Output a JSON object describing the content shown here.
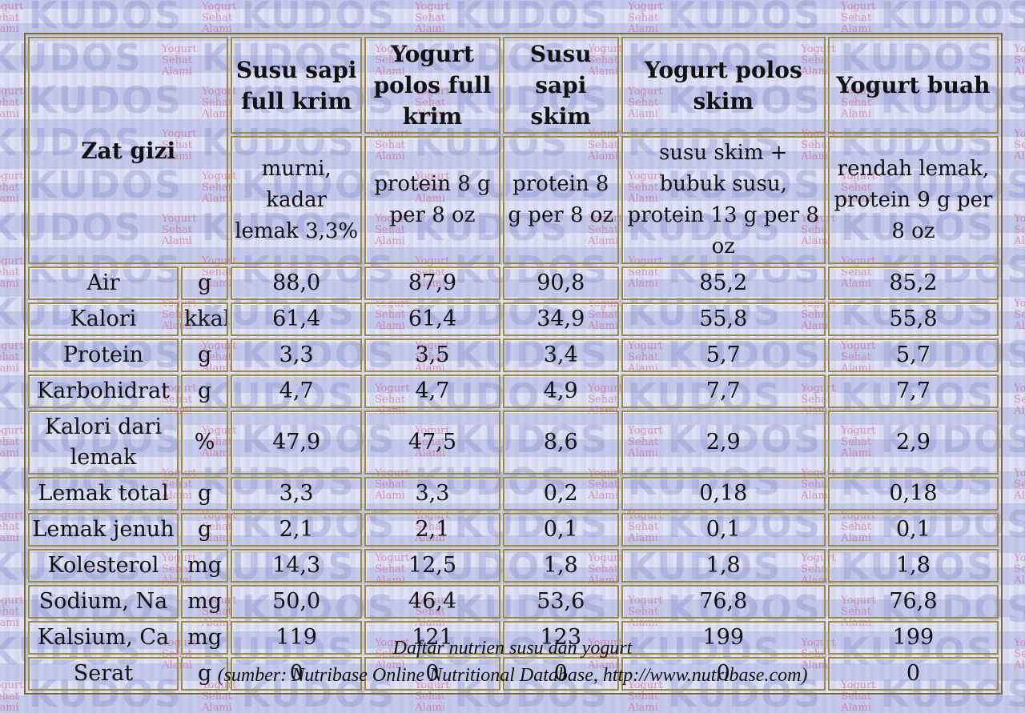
{
  "watermark": {
    "brand": "KUDOS",
    "tagline": [
      "Yogurt",
      "Sehat",
      "Alami"
    ]
  },
  "header": {
    "nutrient_label": "Zat gizi",
    "columns": [
      {
        "name": "Susu sapi full krim",
        "desc": "murni, kadar lemak 3,3%"
      },
      {
        "name": "Yogurt polos full krim",
        "desc": "protein 8 g per 8 oz"
      },
      {
        "name": "Susu sapi skim",
        "desc": "protein 8 g per 8 oz"
      },
      {
        "name": "Yogurt polos skim",
        "desc": "susu skim + bubuk susu, protein 13 g per 8 oz"
      },
      {
        "name": "Yogurt buah",
        "desc": "rendah lemak, protein 9 g per 8 oz"
      }
    ]
  },
  "rows": [
    {
      "name": "Air",
      "unit": "g",
      "values": [
        "88,0",
        "87,9",
        "90,8",
        "85,2",
        "85,2"
      ]
    },
    {
      "name": "Kalori",
      "unit": "kkal",
      "values": [
        "61,4",
        "61,4",
        "34,9",
        "55,8",
        "55,8"
      ]
    },
    {
      "name": "Protein",
      "unit": "g",
      "values": [
        "3,3",
        "3,5",
        "3,4",
        "5,7",
        "5,7"
      ]
    },
    {
      "name": "Karbohidrat",
      "unit": "g",
      "values": [
        "4,7",
        "4,7",
        "4,9",
        "7,7",
        "7,7"
      ]
    },
    {
      "name": "Kalori dari lemak",
      "unit": "%",
      "values": [
        "47,9",
        "47,5",
        "8,6",
        "2,9",
        "2,9"
      ]
    },
    {
      "name": "Lemak total",
      "unit": "g",
      "values": [
        "3,3",
        "3,3",
        "0,2",
        "0,18",
        "0,18"
      ]
    },
    {
      "name": "Lemak jenuh",
      "unit": "g",
      "values": [
        "2,1",
        "2,1",
        "0,1",
        "0,1",
        "0,1"
      ]
    },
    {
      "name": "Kolesterol",
      "unit": "mg",
      "values": [
        "14,3",
        "12,5",
        "1,8",
        "1,8",
        "1,8"
      ]
    },
    {
      "name": "Sodium, Na",
      "unit": "mg",
      "values": [
        "50,0",
        "46,4",
        "53,6",
        "76,8",
        "76,8"
      ]
    },
    {
      "name": "Kalsium, Ca",
      "unit": "mg",
      "values": [
        "119",
        "121",
        "123",
        "199",
        "199"
      ]
    },
    {
      "name": "Serat",
      "unit": "g",
      "values": [
        "0",
        "0",
        "0",
        "0",
        "0"
      ]
    }
  ],
  "caption": {
    "title": "Daftar nutrien susu dan yogurt",
    "source": "(sumber: Nutribase Online Nutritional Database, http://www.nutribase.com)"
  }
}
